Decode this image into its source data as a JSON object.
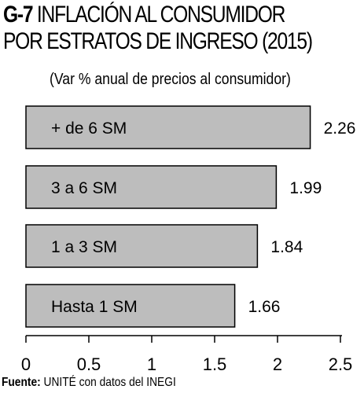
{
  "header": {
    "code": "G-7",
    "title_line1": "INFLACIÓN AL CONSUMIDOR",
    "title_line2": "POR ESTRATOS DE INGRESO (2015)",
    "subtitle": "(Var % anual de precios al consumidor)"
  },
  "footer": {
    "source_label": "Fuente:",
    "source_text": "UNITÉ con datos del INEGI"
  },
  "chart_data": {
    "type": "bar",
    "orientation": "horizontal",
    "categories": [
      "+ de 6  SM",
      "3 a 6 SM",
      "1  a 3 SM",
      "Hasta 1 SM"
    ],
    "values": [
      2.26,
      1.99,
      1.84,
      1.66
    ],
    "value_labels": [
      "2.26",
      "1.99",
      "1.84",
      "1.66"
    ],
    "xlim": [
      0,
      2.5
    ],
    "x_ticks": [
      "0",
      "0.5",
      "1",
      "1.5",
      "2",
      "2.5"
    ],
    "x_tick_values": [
      0,
      0.5,
      1,
      1.5,
      2,
      2.5
    ],
    "bar_color": "#bdbdbd",
    "bar_edge": "#000000",
    "grid": false,
    "legend": "none"
  }
}
